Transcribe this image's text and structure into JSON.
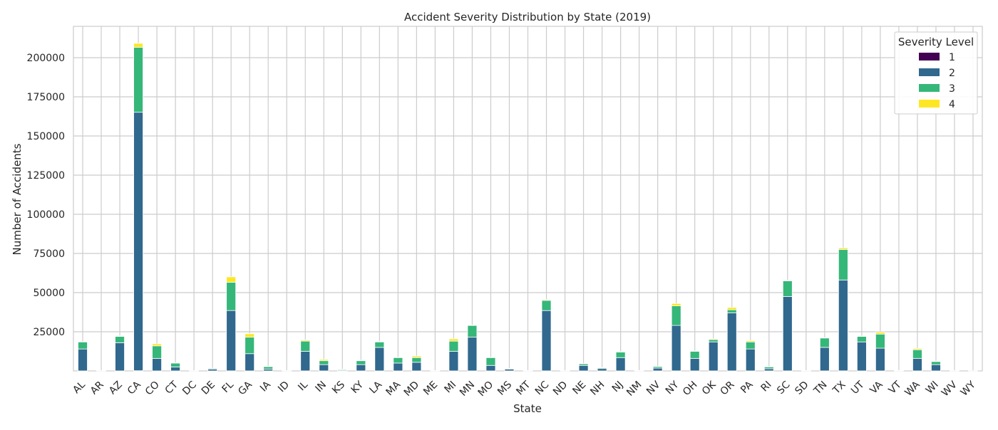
{
  "chart_data": {
    "type": "bar",
    "stacked": true,
    "title": "Accident Severity Distribution by State (2019)",
    "xlabel": "State",
    "ylabel": "Number of Accidents",
    "ylim": [
      0,
      220000
    ],
    "yticks": [
      25000,
      50000,
      75000,
      100000,
      125000,
      150000,
      175000,
      200000
    ],
    "grid": true,
    "legend": {
      "title": "Severity Level",
      "placement": "top-right"
    },
    "categories": [
      "AL",
      "AR",
      "AZ",
      "CA",
      "CO",
      "CT",
      "DC",
      "DE",
      "FL",
      "GA",
      "IA",
      "ID",
      "IL",
      "IN",
      "KS",
      "KY",
      "LA",
      "MA",
      "MD",
      "ME",
      "MI",
      "MN",
      "MO",
      "MS",
      "MT",
      "NC",
      "ND",
      "NE",
      "NH",
      "NJ",
      "NM",
      "NV",
      "NY",
      "OH",
      "OK",
      "OR",
      "PA",
      "RI",
      "SC",
      "SD",
      "TN",
      "TX",
      "UT",
      "VA",
      "VT",
      "WA",
      "WI",
      "WV",
      "WY"
    ],
    "series": [
      {
        "name": "1",
        "color": "#440154",
        "values": [
          10,
          0,
          20,
          150,
          10,
          5,
          0,
          2,
          60,
          20,
          5,
          0,
          20,
          10,
          2,
          10,
          20,
          10,
          10,
          0,
          10,
          20,
          10,
          2,
          0,
          40,
          0,
          5,
          2,
          10,
          0,
          5,
          40,
          20,
          20,
          30,
          20,
          2,
          40,
          0,
          20,
          60,
          20,
          20,
          0,
          20,
          5,
          0,
          0
        ]
      },
      {
        "name": "2",
        "color": "#31688e",
        "values": [
          14000,
          100,
          18000,
          165000,
          8000,
          2500,
          100,
          1200,
          38500,
          11000,
          1200,
          100,
          12500,
          4000,
          500,
          4000,
          15000,
          5000,
          5500,
          100,
          12500,
          21500,
          3500,
          1200,
          200,
          38500,
          100,
          3500,
          1500,
          8500,
          200,
          1800,
          29000,
          8000,
          18500,
          37000,
          14000,
          1400,
          47500,
          100,
          15000,
          58000,
          18500,
          14500,
          200,
          8000,
          4000,
          100,
          50
        ]
      },
      {
        "name": "3",
        "color": "#35b779",
        "values": [
          4500,
          100,
          4000,
          41500,
          8000,
          2500,
          100,
          500,
          18000,
          10500,
          1500,
          100,
          6500,
          2500,
          500,
          2500,
          3500,
          3500,
          3000,
          100,
          6500,
          7500,
          5000,
          300,
          100,
          6500,
          100,
          1000,
          500,
          3500,
          100,
          1000,
          12500,
          4500,
          1500,
          2000,
          4500,
          1200,
          10000,
          100,
          6000,
          19500,
          3500,
          9000,
          100,
          5500,
          2000,
          100,
          50
        ]
      },
      {
        "name": "4",
        "color": "#fde725",
        "values": [
          200,
          0,
          300,
          2500,
          1300,
          200,
          0,
          50,
          3500,
          2200,
          200,
          0,
          700,
          800,
          100,
          300,
          300,
          300,
          1000,
          0,
          1500,
          300,
          200,
          50,
          0,
          500,
          0,
          200,
          50,
          200,
          0,
          100,
          1500,
          200,
          500,
          1500,
          800,
          100,
          300,
          0,
          200,
          1000,
          200,
          1200,
          0,
          800,
          300,
          0,
          0
        ]
      }
    ]
  }
}
